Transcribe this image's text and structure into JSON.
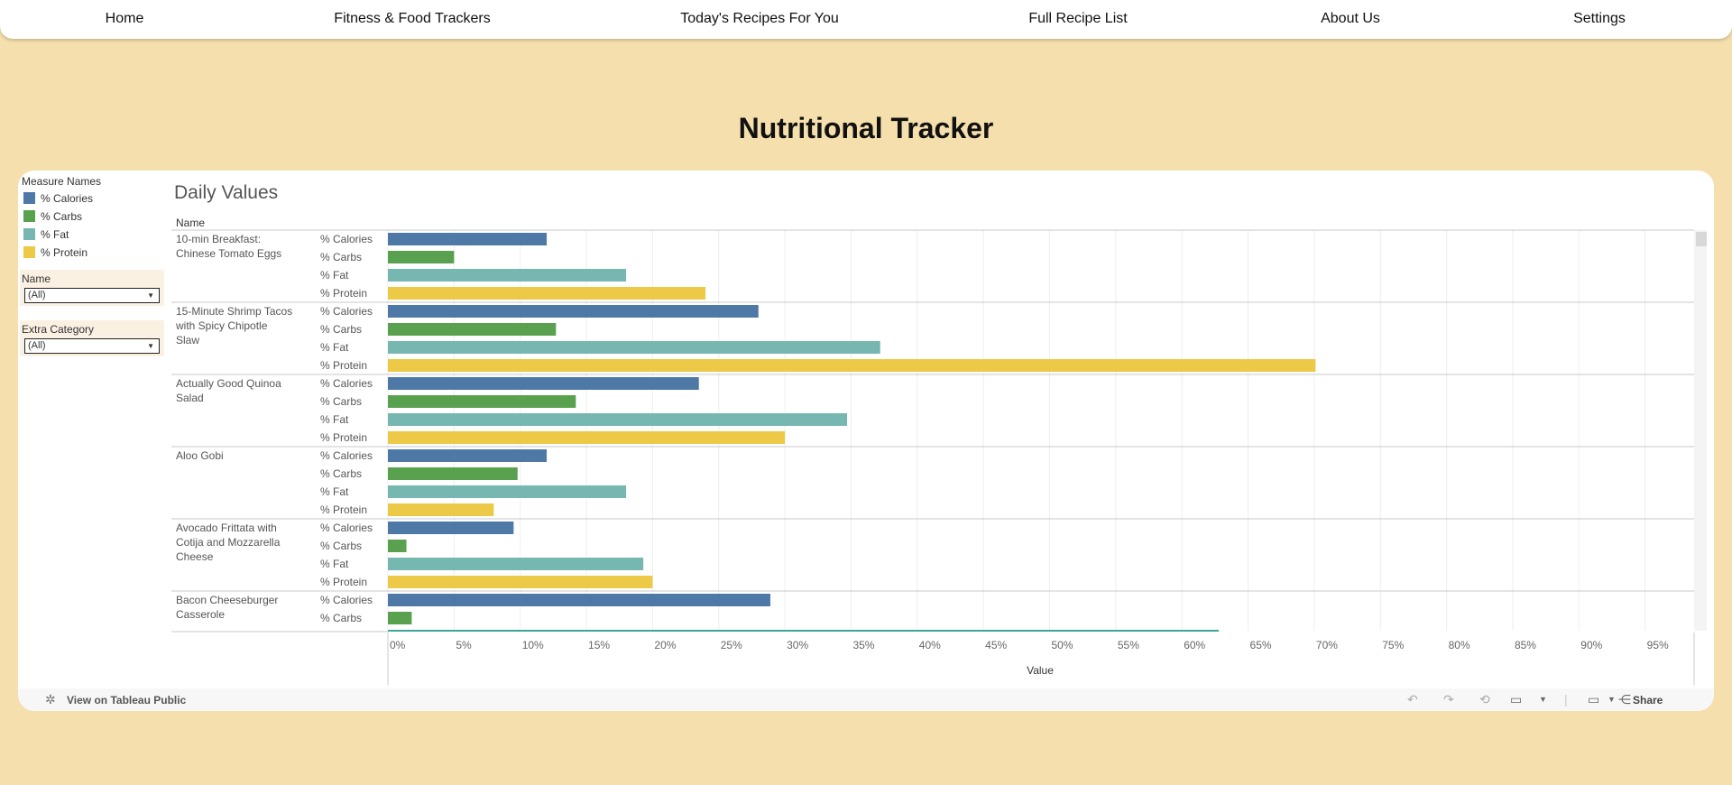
{
  "nav": {
    "items": [
      "Home",
      "Fitness & Food Trackers",
      "Today's Recipes For You",
      "Full Recipe List",
      "About Us",
      "Settings"
    ]
  },
  "page": {
    "title": "Nutritional Tracker"
  },
  "dashboard": {
    "sheet_title": "Daily Values",
    "legend": {
      "title": "Measure Names",
      "items": [
        {
          "label": "% Calories",
          "color": "#4e79a7"
        },
        {
          "label": "% Carbs",
          "color": "#59a14f"
        },
        {
          "label": "% Fat",
          "color": "#76b7b2"
        },
        {
          "label": "% Protein",
          "color": "#edc948"
        }
      ]
    },
    "filters": [
      {
        "label": "Name",
        "value": "(All)"
      },
      {
        "label": "Extra Category",
        "value": "(All)"
      }
    ],
    "row_header": "Name",
    "footer": {
      "view_link": "View on Tableau Public",
      "share_label": "Share"
    }
  },
  "chart_data": {
    "type": "bar",
    "orientation": "horizontal",
    "title": "Daily Values",
    "row_header": "Name",
    "xlabel": "Value",
    "xlim": [
      0,
      0.99
    ],
    "x_ticks": [
      "0%",
      "5%",
      "10%",
      "15%",
      "20%",
      "25%",
      "30%",
      "35%",
      "40%",
      "45%",
      "50%",
      "55%",
      "60%",
      "65%",
      "70%",
      "75%",
      "80%",
      "85%",
      "90%",
      "95%"
    ],
    "grid": true,
    "legend_position": "left",
    "groups": [
      {
        "name": "10-min Breakfast: Chinese Tomato Eggs",
        "bars": [
          {
            "measure": "% Calories",
            "value": 0.12
          },
          {
            "measure": "% Carbs",
            "value": 0.05
          },
          {
            "measure": "% Fat",
            "value": 0.18
          },
          {
            "measure": "% Protein",
            "value": 0.24
          }
        ]
      },
      {
        "name": "15-Minute Shrimp Tacos with Spicy Chipotle Slaw",
        "bars": [
          {
            "measure": "% Calories",
            "value": 0.28
          },
          {
            "measure": "% Carbs",
            "value": 0.127
          },
          {
            "measure": "% Fat",
            "value": 0.372
          },
          {
            "measure": "% Protein",
            "value": 0.701
          }
        ]
      },
      {
        "name": "Actually Good Quinoa Salad",
        "bars": [
          {
            "measure": "% Calories",
            "value": 0.235
          },
          {
            "measure": "% Carbs",
            "value": 0.142
          },
          {
            "measure": "% Fat",
            "value": 0.347
          },
          {
            "measure": "% Protein",
            "value": 0.3
          }
        ]
      },
      {
        "name": "Aloo Gobi",
        "bars": [
          {
            "measure": "% Calories",
            "value": 0.12
          },
          {
            "measure": "% Carbs",
            "value": 0.098
          },
          {
            "measure": "% Fat",
            "value": 0.18
          },
          {
            "measure": "% Protein",
            "value": 0.08
          }
        ]
      },
      {
        "name": "Avocado Frittata with Cotija and Mozzarella Cheese",
        "bars": [
          {
            "measure": "% Calories",
            "value": 0.095
          },
          {
            "measure": "% Carbs",
            "value": 0.014
          },
          {
            "measure": "% Fat",
            "value": 0.193
          },
          {
            "measure": "% Protein",
            "value": 0.2
          }
        ]
      },
      {
        "name": "Bacon Cheeseburger Casserole",
        "bars": [
          {
            "measure": "% Calories",
            "value": 0.289
          },
          {
            "measure": "% Carbs",
            "value": 0.018
          }
        ]
      }
    ]
  }
}
